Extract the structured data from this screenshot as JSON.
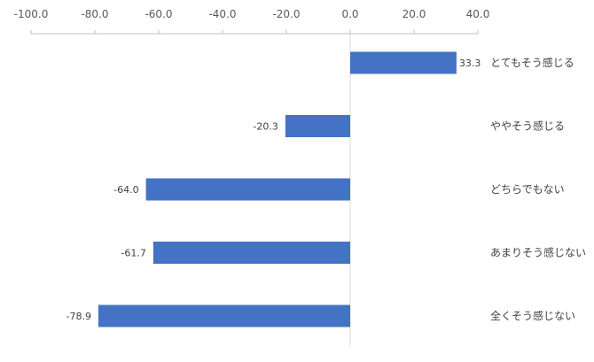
{
  "chart_data": {
    "type": "bar",
    "orientation": "horizontal",
    "categories": [
      "とてもそう感じる",
      "ややそう感じる",
      "どちらでもない",
      "あまりそう感じない",
      "全くそう感じない"
    ],
    "values": [
      33.3,
      -20.3,
      -64.0,
      -61.7,
      -78.9
    ],
    "value_labels": [
      "33.3",
      "-20.3",
      "-64.0",
      "-61.7",
      "-78.9"
    ],
    "xlim": [
      -100,
      40
    ],
    "xticks": [
      -100,
      -80,
      -60,
      -40,
      -20,
      0,
      20,
      40
    ],
    "xtick_labels": [
      "-100.0",
      "-80.0",
      "-60.0",
      "-40.0",
      "-20.0",
      "0.0",
      "20.0",
      "40.0"
    ],
    "axis_position": "top",
    "legend": "none",
    "grid": false,
    "colors": {
      "bar": "#4472c4",
      "axis": "#bfbfbf",
      "zero_line": "#d9d9d9"
    }
  }
}
